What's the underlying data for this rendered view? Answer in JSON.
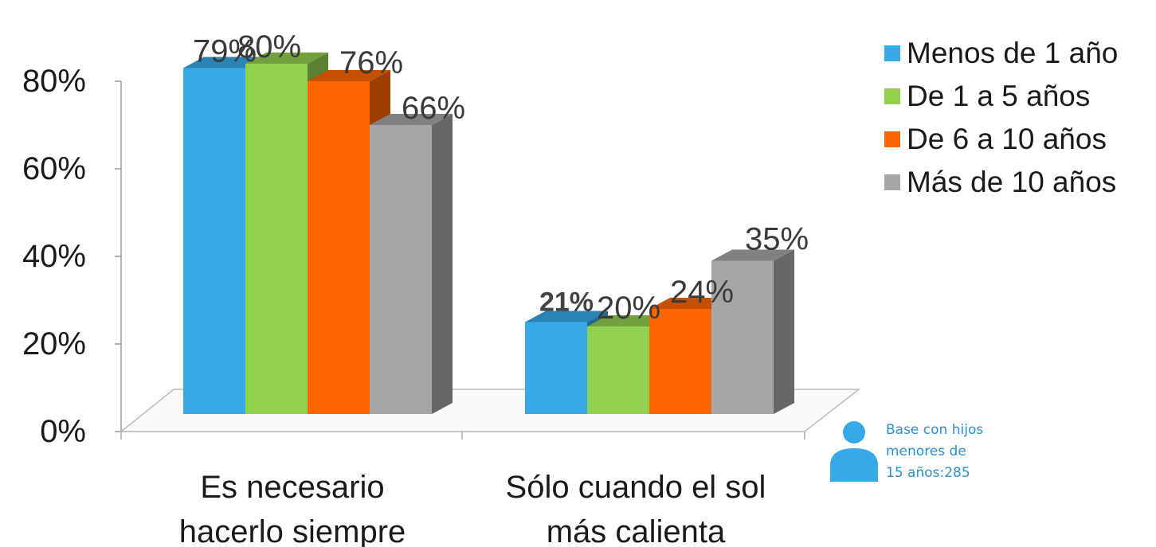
{
  "chart_data": {
    "type": "bar",
    "categories": [
      "Es necesario hacerlo siempre",
      "Sólo cuando el sol más calienta"
    ],
    "category_lines": [
      [
        "Es necesario",
        "hacerlo siempre"
      ],
      [
        "Sólo cuando el sol",
        "más calienta"
      ]
    ],
    "series": [
      {
        "name": "Menos de 1 año",
        "values": [
          79,
          21
        ],
        "labels": [
          "79%",
          "21%"
        ],
        "color": "#36A9E8"
      },
      {
        "name": "De 1 a 5 años",
        "values": [
          80,
          20
        ],
        "labels": [
          "80%",
          "20%"
        ],
        "color": "#92D050"
      },
      {
        "name": "De 6 a 10 años",
        "values": [
          76,
          24
        ],
        "labels": [
          "76%",
          "24%"
        ],
        "color": "#FF6600"
      },
      {
        "name": "Más de 10 años",
        "values": [
          66,
          35
        ],
        "labels": [
          "66%",
          "35%"
        ],
        "color": "#A6A6A6"
      }
    ],
    "yticks": [
      0,
      20,
      40,
      60,
      80
    ],
    "ytick_labels": [
      "0%",
      "20%",
      "40%",
      "60%",
      "80%"
    ],
    "ylim": [
      0,
      80
    ],
    "legend_position": "top-right",
    "grid": false,
    "bold_label": "21%"
  },
  "legend": {
    "items": [
      {
        "label": "Menos de 1 año",
        "color": "#36A9E8"
      },
      {
        "label": "De 1 a 5 años",
        "color": "#92D050"
      },
      {
        "label": "De 6 a 10 años",
        "color": "#FF6600"
      },
      {
        "label": "Más de 10 años",
        "color": "#A6A6A6"
      }
    ]
  },
  "note": {
    "icon": "person-icon",
    "icon_color": "#36A9E8",
    "lines": [
      "Base con hijos",
      "menores de",
      "15 años:285"
    ]
  }
}
